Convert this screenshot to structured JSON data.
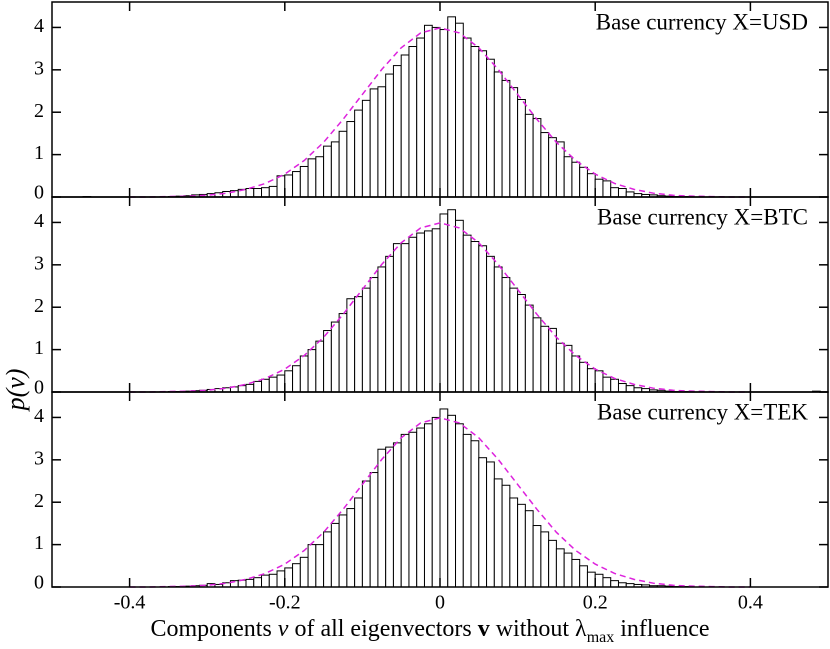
{
  "chart_data": [
    {
      "type": "histogram",
      "title": "Base currency X=USD",
      "bins": [
        -0.5,
        -0.49,
        -0.48,
        -0.47,
        -0.46,
        -0.45,
        -0.44,
        -0.43,
        -0.42,
        -0.41,
        -0.4,
        -0.39,
        -0.38,
        -0.37,
        -0.36,
        -0.35,
        -0.34,
        -0.33,
        -0.32,
        -0.31,
        -0.3,
        -0.29,
        -0.28,
        -0.27,
        -0.26,
        -0.25,
        -0.24,
        -0.23,
        -0.22,
        -0.21,
        -0.2,
        -0.19,
        -0.18,
        -0.17,
        -0.16,
        -0.15,
        -0.14,
        -0.13,
        -0.12,
        -0.11,
        -0.1,
        -0.09,
        -0.08,
        -0.07,
        -0.06,
        -0.05,
        -0.04,
        -0.03,
        -0.02,
        -0.01,
        0,
        0.01,
        0.02,
        0.03,
        0.04,
        0.05,
        0.06,
        0.07,
        0.08,
        0.09,
        0.1,
        0.11,
        0.12,
        0.13,
        0.14,
        0.15,
        0.16,
        0.17,
        0.18,
        0.19,
        0.2,
        0.21,
        0.22,
        0.23,
        0.24,
        0.25,
        0.26,
        0.27,
        0.28,
        0.29,
        0.3,
        0.31,
        0.32,
        0.33,
        0.34,
        0.35,
        0.36,
        0.37,
        0.38,
        0.39,
        0.4,
        0.41,
        0.42,
        0.43,
        0.44,
        0.45,
        0.46,
        0.47,
        0.48,
        0.49,
        0.5
      ],
      "values": [
        0,
        0,
        0,
        0,
        0.01,
        0,
        0,
        0,
        0,
        0,
        0,
        0,
        0,
        0,
        0,
        0.01,
        0.02,
        0.03,
        0.05,
        0.06,
        0.08,
        0.1,
        0.13,
        0.15,
        0.18,
        0.2,
        0.2,
        0.22,
        0.25,
        0.5,
        0.52,
        0.6,
        0.72,
        0.9,
        0.95,
        1.2,
        1.3,
        1.55,
        1.78,
        2.05,
        2.28,
        2.55,
        2.6,
        2.9,
        3.1,
        3.35,
        3.55,
        3.75,
        4.05,
        4.0,
        3.95,
        4.25,
        4.1,
        3.75,
        3.55,
        3.45,
        3.25,
        2.95,
        2.75,
        2.58,
        2.3,
        1.95,
        1.85,
        1.52,
        1.4,
        1.3,
        0.95,
        0.82,
        0.7,
        0.55,
        0.42,
        0.38,
        0.22,
        0.2,
        0.12,
        0.08,
        0.06,
        0.05,
        0.03,
        0.02,
        0.01,
        0.01,
        0,
        0,
        0,
        0,
        0,
        0,
        0,
        0,
        0,
        0,
        0,
        0,
        0,
        0,
        0,
        0,
        0,
        0
      ],
      "fit": {
        "color": "#dd22dd",
        "x": [
          -0.4,
          -0.375,
          -0.35,
          -0.325,
          -0.3,
          -0.275,
          -0.25,
          -0.225,
          -0.2,
          -0.175,
          -0.15,
          -0.125,
          -0.1,
          -0.075,
          -0.05,
          -0.025,
          0,
          0.025,
          0.05,
          0.075,
          0.1,
          0.125,
          0.15,
          0.175,
          0.2,
          0.225,
          0.25,
          0.275,
          0.3,
          0.325,
          0.35,
          0.375,
          0.4
        ],
        "values": [
          0,
          0,
          0.01,
          0.02,
          0.04,
          0.09,
          0.18,
          0.32,
          0.54,
          0.86,
          1.29,
          1.83,
          2.42,
          3.01,
          3.52,
          3.87,
          3.99,
          3.87,
          3.52,
          3.01,
          2.42,
          1.83,
          1.29,
          0.86,
          0.54,
          0.32,
          0.18,
          0.09,
          0.04,
          0.02,
          0.01,
          0,
          0
        ]
      },
      "xlim": [
        -0.5,
        0.5
      ],
      "ylim": [
        0,
        4.6
      ],
      "yticks": [
        0,
        1,
        2,
        3,
        4
      ]
    },
    {
      "type": "histogram",
      "title": "Base currency X=BTC",
      "ylabel": "p(v)",
      "bins": [
        -0.5,
        -0.49,
        -0.48,
        -0.47,
        -0.46,
        -0.45,
        -0.44,
        -0.43,
        -0.42,
        -0.41,
        -0.4,
        -0.39,
        -0.38,
        -0.37,
        -0.36,
        -0.35,
        -0.34,
        -0.33,
        -0.32,
        -0.31,
        -0.3,
        -0.29,
        -0.28,
        -0.27,
        -0.26,
        -0.25,
        -0.24,
        -0.23,
        -0.22,
        -0.21,
        -0.2,
        -0.19,
        -0.18,
        -0.17,
        -0.16,
        -0.15,
        -0.14,
        -0.13,
        -0.12,
        -0.11,
        -0.1,
        -0.09,
        -0.08,
        -0.07,
        -0.06,
        -0.05,
        -0.04,
        -0.03,
        -0.02,
        -0.01,
        0,
        0.01,
        0.02,
        0.03,
        0.04,
        0.05,
        0.06,
        0.07,
        0.08,
        0.09,
        0.1,
        0.11,
        0.12,
        0.13,
        0.14,
        0.15,
        0.16,
        0.17,
        0.18,
        0.19,
        0.2,
        0.21,
        0.22,
        0.23,
        0.24,
        0.25,
        0.26,
        0.27,
        0.28,
        0.29,
        0.3,
        0.31,
        0.32,
        0.33,
        0.34,
        0.35,
        0.36,
        0.37,
        0.38,
        0.39,
        0.4,
        0.41,
        0.42,
        0.43,
        0.44,
        0.45,
        0.46,
        0.47,
        0.48,
        0.49,
        0.5
      ],
      "values": [
        0,
        0,
        0,
        0,
        0,
        0,
        0,
        0,
        0,
        0,
        0,
        0,
        0,
        0,
        0,
        0.01,
        0.01,
        0.02,
        0.03,
        0.04,
        0.06,
        0.08,
        0.1,
        0.12,
        0.15,
        0.18,
        0.25,
        0.3,
        0.35,
        0.4,
        0.5,
        0.62,
        0.85,
        1.0,
        1.2,
        1.45,
        1.65,
        1.85,
        2.2,
        2.25,
        2.45,
        2.7,
        2.95,
        3.2,
        3.5,
        3.5,
        3.65,
        3.75,
        3.8,
        3.85,
        4.2,
        4.3,
        4.05,
        3.7,
        3.55,
        3.45,
        3.2,
        2.95,
        2.7,
        2.45,
        2.3,
        2.05,
        1.75,
        1.55,
        1.5,
        1.15,
        1.1,
        0.85,
        0.7,
        0.55,
        0.5,
        0.35,
        0.3,
        0.2,
        0.15,
        0.1,
        0.08,
        0.05,
        0.04,
        0.02,
        0.01,
        0.01,
        0,
        0,
        0,
        0,
        0,
        0,
        0,
        0,
        0,
        0,
        0,
        0,
        0,
        0,
        0,
        0,
        0.02,
        0
      ],
      "fit": {
        "color": "#dd22dd",
        "x": [
          -0.4,
          -0.375,
          -0.35,
          -0.325,
          -0.3,
          -0.275,
          -0.25,
          -0.225,
          -0.2,
          -0.175,
          -0.15,
          -0.125,
          -0.1,
          -0.075,
          -0.05,
          -0.025,
          0,
          0.025,
          0.05,
          0.075,
          0.1,
          0.125,
          0.15,
          0.175,
          0.2,
          0.225,
          0.25,
          0.275,
          0.3,
          0.325,
          0.35,
          0.375,
          0.4
        ],
        "values": [
          0,
          0,
          0.01,
          0.02,
          0.04,
          0.09,
          0.18,
          0.32,
          0.54,
          0.86,
          1.29,
          1.83,
          2.42,
          3.01,
          3.52,
          3.87,
          3.99,
          3.87,
          3.52,
          3.01,
          2.42,
          1.83,
          1.29,
          0.86,
          0.54,
          0.32,
          0.18,
          0.09,
          0.04,
          0.02,
          0.01,
          0,
          0
        ]
      },
      "xlim": [
        -0.5,
        0.5
      ],
      "ylim": [
        0,
        4.6
      ],
      "yticks": [
        0,
        1,
        2,
        3,
        4
      ]
    },
    {
      "type": "histogram",
      "title": "Base currency X=TEK",
      "xlabel": [
        "Components ",
        "v",
        " of all eigenvectors ",
        "v",
        " without λ",
        "max",
        " influence"
      ],
      "bins": [
        -0.5,
        -0.49,
        -0.48,
        -0.47,
        -0.46,
        -0.45,
        -0.44,
        -0.43,
        -0.42,
        -0.41,
        -0.4,
        -0.39,
        -0.38,
        -0.37,
        -0.36,
        -0.35,
        -0.34,
        -0.33,
        -0.32,
        -0.31,
        -0.3,
        -0.29,
        -0.28,
        -0.27,
        -0.26,
        -0.25,
        -0.24,
        -0.23,
        -0.22,
        -0.21,
        -0.2,
        -0.19,
        -0.18,
        -0.17,
        -0.16,
        -0.15,
        -0.14,
        -0.13,
        -0.12,
        -0.11,
        -0.1,
        -0.09,
        -0.08,
        -0.07,
        -0.06,
        -0.05,
        -0.04,
        -0.03,
        -0.02,
        -0.01,
        0,
        0.01,
        0.02,
        0.03,
        0.04,
        0.05,
        0.06,
        0.07,
        0.08,
        0.09,
        0.1,
        0.11,
        0.12,
        0.13,
        0.14,
        0.15,
        0.16,
        0.17,
        0.18,
        0.19,
        0.2,
        0.21,
        0.22,
        0.23,
        0.24,
        0.25,
        0.26,
        0.27,
        0.28,
        0.29,
        0.3,
        0.31,
        0.32,
        0.33,
        0.34,
        0.35,
        0.36,
        0.37,
        0.38,
        0.39,
        0.4,
        0.41,
        0.42,
        0.43,
        0.44,
        0.45,
        0.46,
        0.47,
        0.48,
        0.49,
        0.5
      ],
      "values": [
        0,
        0,
        0,
        0,
        0,
        0,
        0,
        0,
        0,
        0,
        0,
        0,
        0,
        0,
        0,
        0.01,
        0.01,
        0.02,
        0.03,
        0.04,
        0.08,
        0.06,
        0.1,
        0.15,
        0.16,
        0.18,
        0.22,
        0.28,
        0.3,
        0.38,
        0.45,
        0.55,
        0.7,
        1.0,
        1.0,
        1.3,
        1.5,
        1.7,
        1.85,
        2.1,
        2.5,
        2.7,
        3.25,
        3.3,
        3.4,
        3.6,
        3.65,
        3.75,
        3.85,
        4.0,
        4.2,
        4.05,
        3.85,
        3.6,
        3.45,
        3.05,
        2.95,
        2.55,
        2.4,
        2.1,
        1.95,
        1.8,
        1.45,
        1.3,
        1.1,
        0.9,
        0.8,
        0.65,
        0.5,
        0.35,
        0.3,
        0.22,
        0.15,
        0.1,
        0.08,
        0.06,
        0.05,
        0.03,
        0.03,
        0.02,
        0.01,
        0.01,
        0,
        0,
        0,
        0,
        0,
        0,
        0,
        0,
        0,
        0,
        0,
        0,
        0,
        0,
        0,
        0,
        0,
        0
      ],
      "fit": {
        "color": "#dd22dd",
        "x": [
          -0.4,
          -0.375,
          -0.35,
          -0.325,
          -0.3,
          -0.275,
          -0.25,
          -0.225,
          -0.2,
          -0.175,
          -0.15,
          -0.125,
          -0.1,
          -0.075,
          -0.05,
          -0.025,
          0,
          0.025,
          0.05,
          0.075,
          0.1,
          0.125,
          0.15,
          0.175,
          0.2,
          0.225,
          0.25,
          0.275,
          0.3,
          0.325,
          0.35,
          0.375,
          0.4
        ],
        "values": [
          0,
          0,
          0.01,
          0.02,
          0.04,
          0.09,
          0.18,
          0.32,
          0.54,
          0.86,
          1.29,
          1.83,
          2.42,
          3.01,
          3.52,
          3.87,
          3.99,
          3.87,
          3.52,
          3.01,
          2.42,
          1.83,
          1.29,
          0.86,
          0.54,
          0.32,
          0.18,
          0.09,
          0.04,
          0.02,
          0.01,
          0,
          0
        ]
      },
      "xlim": [
        -0.5,
        0.5
      ],
      "ylim": [
        0,
        4.6
      ],
      "yticks": [
        0,
        1,
        2,
        3,
        4
      ],
      "xticks": [
        -0.4,
        -0.2,
        0,
        0.2,
        0.4
      ]
    }
  ]
}
